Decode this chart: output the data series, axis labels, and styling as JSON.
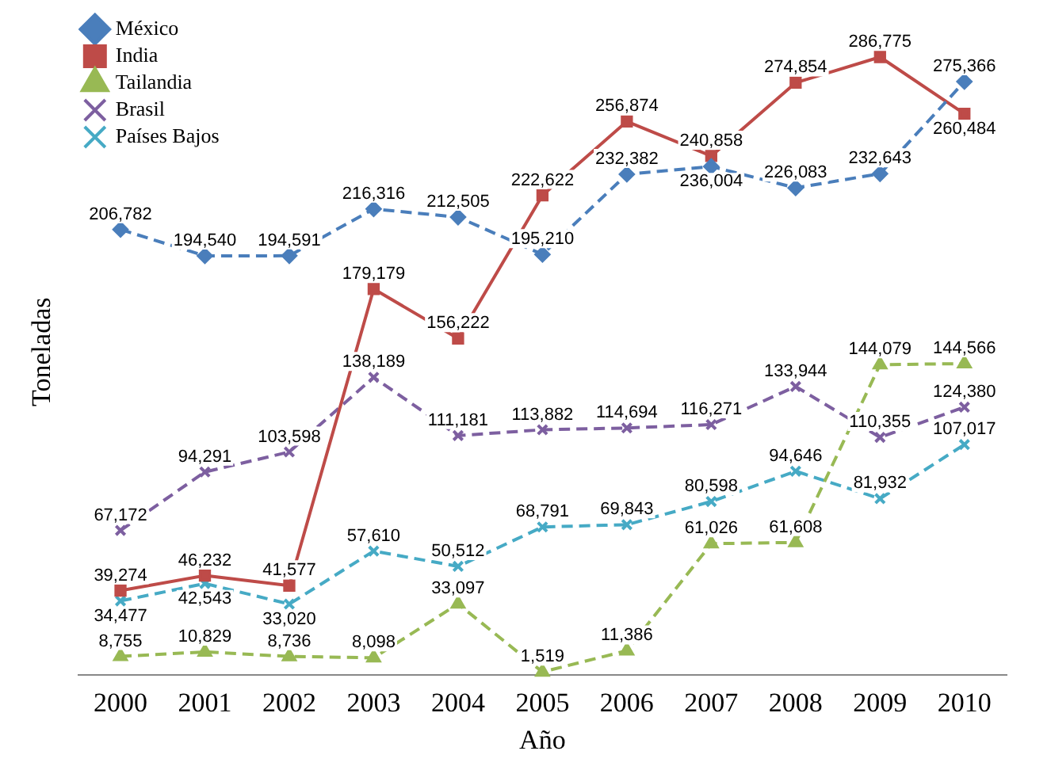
{
  "chart_data": {
    "type": "line",
    "xlabel": "Año",
    "ylabel": "Toneladas",
    "categories": [
      "2000",
      "2001",
      "2002",
      "2003",
      "2004",
      "2005",
      "2006",
      "2007",
      "2008",
      "2009",
      "2010"
    ],
    "series": [
      {
        "name": "México",
        "color": "#4a7ebb",
        "marker": "diamond",
        "line_style": "dashed",
        "values": [
          206782,
          194540,
          194591,
          216316,
          212505,
          195210,
          232382,
          236004,
          226083,
          232643,
          275366
        ],
        "value_labels": [
          "206,782",
          "194,540",
          "194,591",
          "216,316",
          "212,505",
          "195,210",
          "232,382",
          "236,004",
          "226,083",
          "232,643",
          "275,366"
        ]
      },
      {
        "name": "India",
        "color": "#be4b48",
        "marker": "square",
        "line_style": "solid",
        "values": [
          39274,
          46232,
          41577,
          179179,
          156222,
          222622,
          256874,
          240858,
          274854,
          286775,
          260484
        ],
        "value_labels": [
          "39,274",
          "46,232",
          "41,577",
          "179,179",
          "156,222",
          "222,622",
          "256,874",
          "240,858",
          "274,854",
          "286,775",
          "260,484"
        ]
      },
      {
        "name": "Tailandia",
        "color": "#98b954",
        "marker": "triangle",
        "line_style": "dashed",
        "values": [
          8755,
          10829,
          8736,
          8098,
          33097,
          1519,
          11386,
          61026,
          61608,
          144079,
          144566
        ],
        "value_labels": [
          "8,755",
          "10,829",
          "8,736",
          "8,098",
          "33,097",
          "1,519",
          "11,386",
          "61,026",
          "61,608",
          "144,079",
          "144,566"
        ]
      },
      {
        "name": "Brasil",
        "color": "#7d5fa0",
        "marker": "cross",
        "line_style": "dashed",
        "values": [
          67172,
          94291,
          103598,
          138189,
          111181,
          113882,
          114694,
          116271,
          133944,
          110355,
          124380
        ],
        "value_labels": [
          "67,172",
          "94,291",
          "103,598",
          "138,189",
          "111,181",
          "113,882",
          "114,694",
          "116,271",
          "133,944",
          "110,355",
          "124,380"
        ]
      },
      {
        "name": "Países Bajos",
        "color": "#46aac5",
        "marker": "cross",
        "line_style": "dashed",
        "values": [
          34477,
          42543,
          33020,
          57610,
          50512,
          68791,
          69843,
          80598,
          94646,
          81932,
          107017
        ],
        "value_labels": [
          "34,477",
          "42,543",
          "33,020",
          "57,610",
          "50,512",
          "68,791",
          "69,843",
          "80,598",
          "94,646",
          "81,932",
          "107,017"
        ]
      }
    ],
    "legend": "top left",
    "grid": false,
    "tick_labels": "x"
  }
}
